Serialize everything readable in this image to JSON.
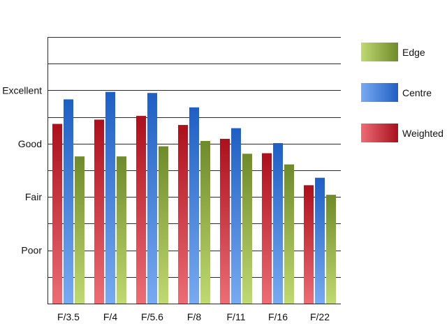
{
  "chart_data": {
    "type": "bar",
    "title": "",
    "xlabel": "",
    "ylabel": "",
    "categories": [
      "F/3.5",
      "F/4",
      "F/5.6",
      "F/8",
      "F/11",
      "F/16",
      "F/22"
    ],
    "y_tick_labels": [
      {
        "label": "Poor",
        "value": 1
      },
      {
        "label": "Fair",
        "value": 2
      },
      {
        "label": "Good",
        "value": 3
      },
      {
        "label": "Excellent",
        "value": 4
      }
    ],
    "ylim": [
      0,
      5
    ],
    "grid": true,
    "legend_position": "right",
    "series": [
      {
        "name": "Weighted",
        "values": [
          3.37,
          3.45,
          3.52,
          3.35,
          3.09,
          2.82,
          2.22
        ],
        "colors": [
          "#e8616c",
          "#a8101c"
        ]
      },
      {
        "name": "Centre",
        "values": [
          3.83,
          3.97,
          3.95,
          3.68,
          3.29,
          3.01,
          2.36
        ],
        "colors": [
          "#6fa3ee",
          "#1f5fc4"
        ]
      },
      {
        "name": "Edge",
        "values": [
          2.76,
          2.76,
          2.95,
          3.05,
          2.81,
          2.61,
          2.04
        ],
        "colors": [
          "#b7d36a",
          "#718c2c"
        ]
      }
    ],
    "legend_order": [
      "Edge",
      "Centre",
      "Weighted"
    ]
  }
}
